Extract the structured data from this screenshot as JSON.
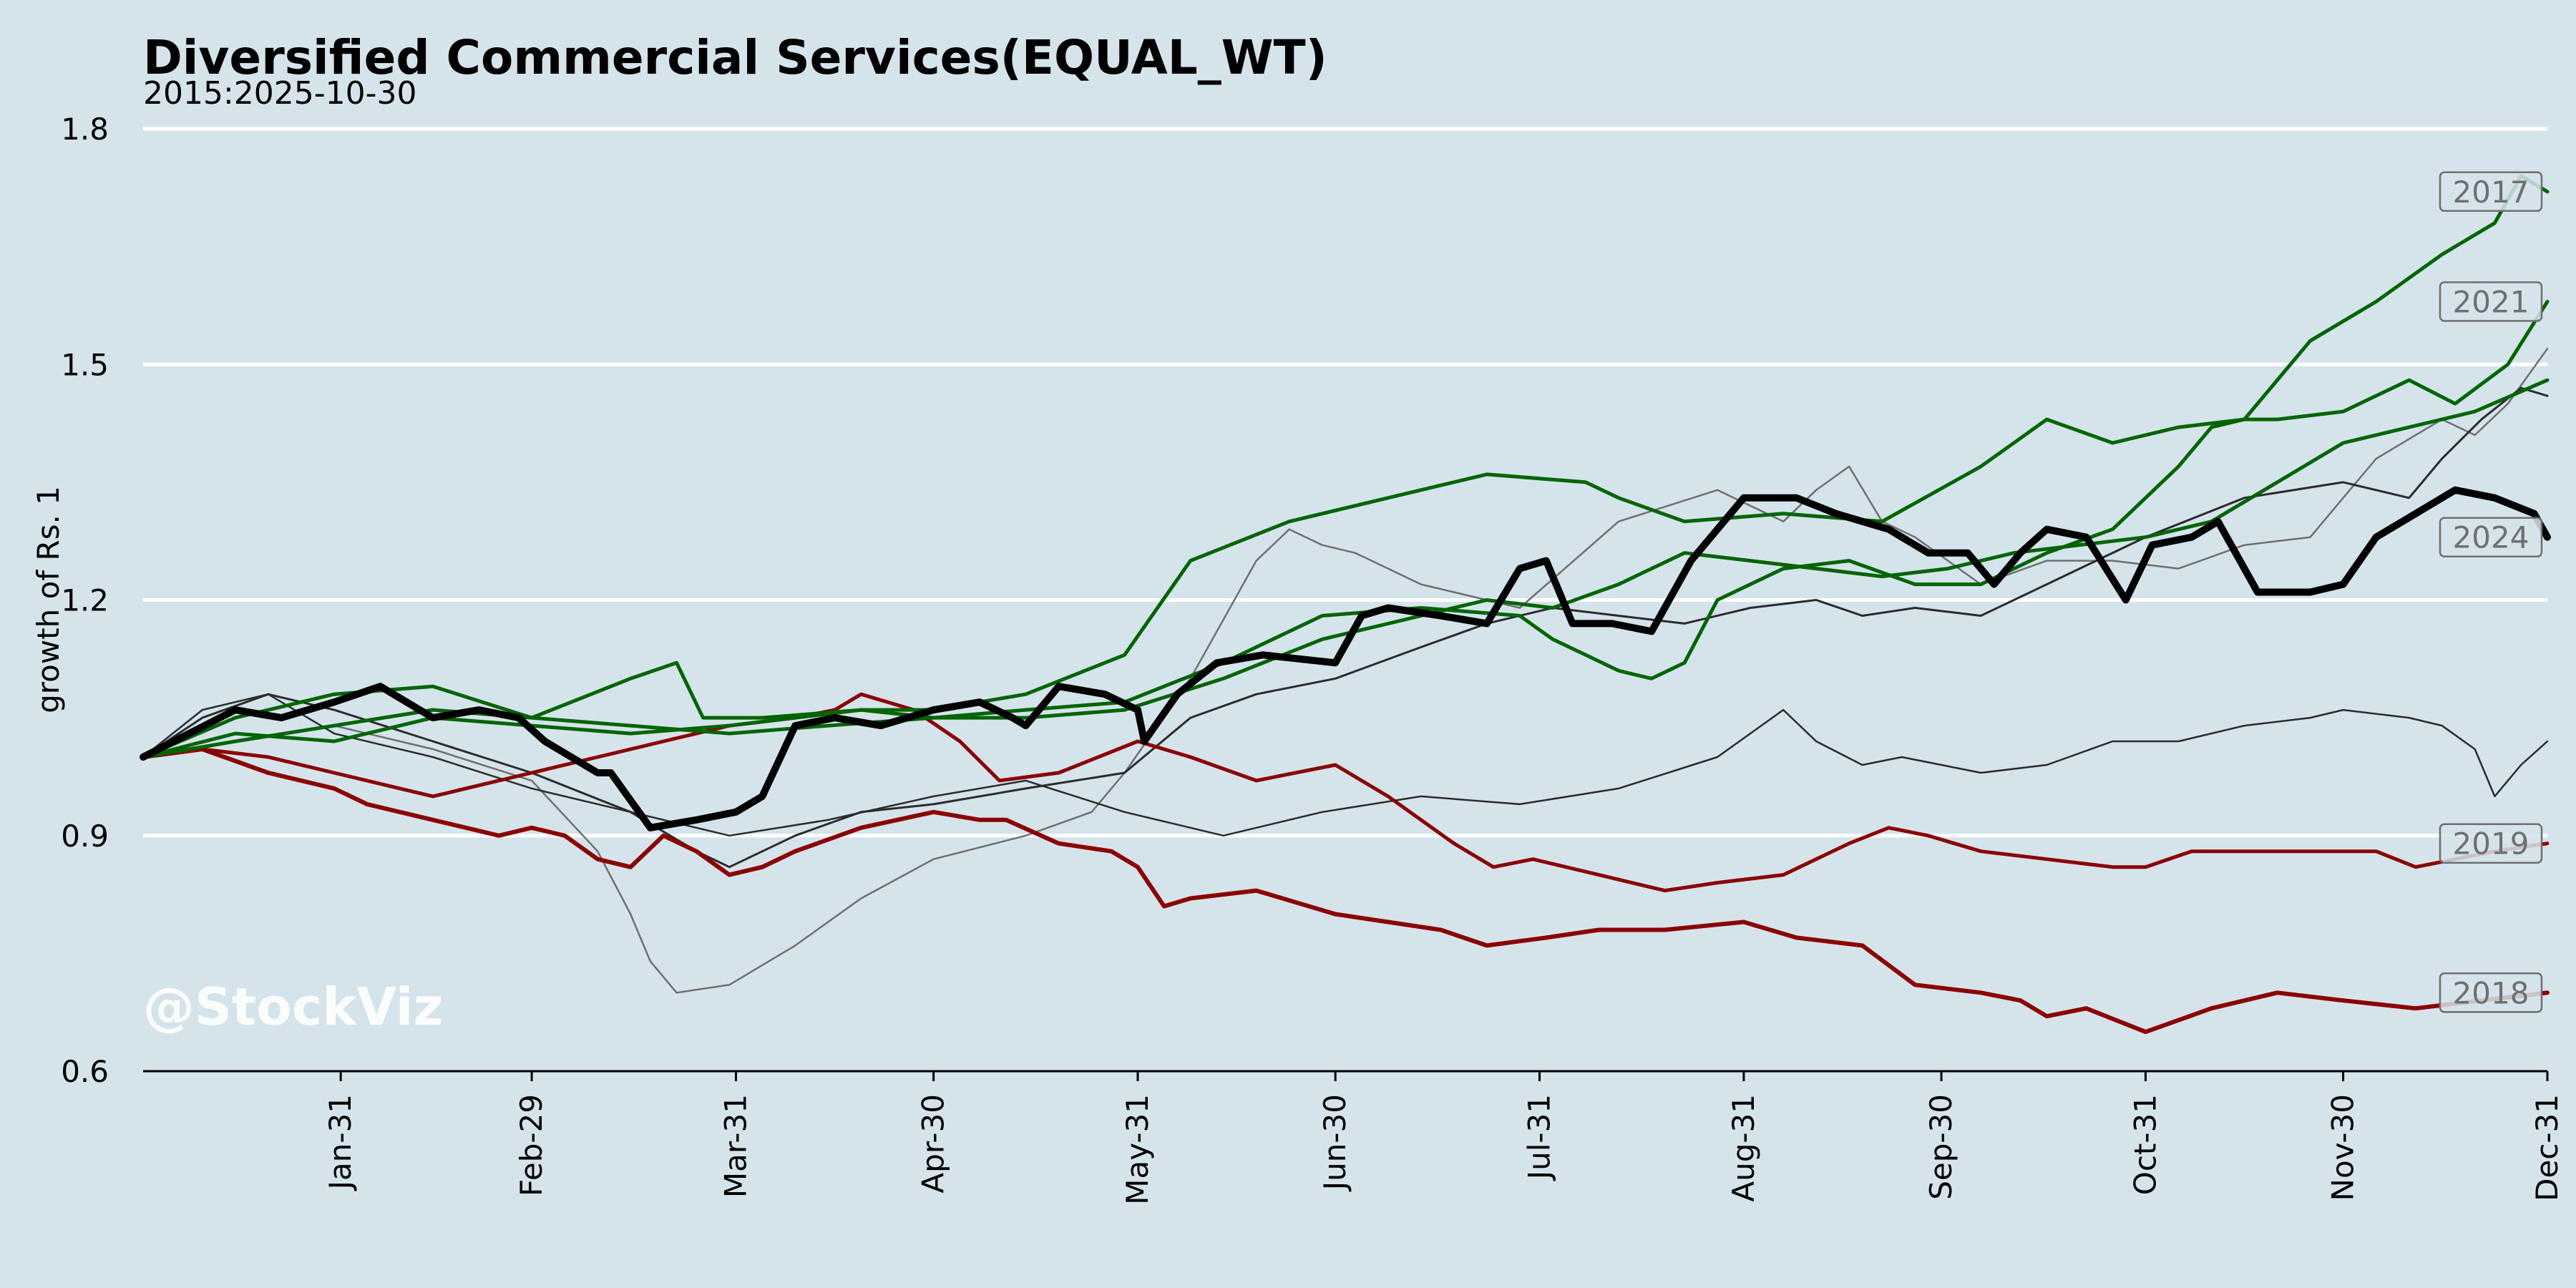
{
  "colors": {
    "background": "#d5e4eb",
    "gridline": "#ffffff",
    "axis": "#000000",
    "up_year": "#006400",
    "down_year": "#8b0000",
    "current_year": "#000000",
    "other_year": "#2b2b2b",
    "faint_year": "#6f6f6f",
    "year_label_text": "#6f6f6f",
    "year_label_border": "#6f6f6f"
  },
  "chart_data": {
    "type": "line",
    "title": "Diversified Commercial Services(EQUAL_WT)",
    "subtitle": "2015:2025-10-30",
    "ylabel": "growth of Rs. 1",
    "xlabel": "",
    "watermark": "@StockViz",
    "ylim": [
      0.6,
      1.8
    ],
    "xlim": [
      1,
      366
    ],
    "yticks": [
      0.6,
      0.9,
      1.2,
      1.5,
      1.8
    ],
    "ytick_labels": [
      "0.6",
      "0.9",
      "1.2",
      "1.5",
      "1.8"
    ],
    "xticks": [
      {
        "day": 31,
        "label": "Jan-31"
      },
      {
        "day": 60,
        "label": "Feb-29"
      },
      {
        "day": 91,
        "label": "Mar-31"
      },
      {
        "day": 121,
        "label": "Apr-30"
      },
      {
        "day": 152,
        "label": "May-31"
      },
      {
        "day": 182,
        "label": "Jun-30"
      },
      {
        "day": 213,
        "label": "Jul-31"
      },
      {
        "day": 244,
        "label": "Aug-31"
      },
      {
        "day": 274,
        "label": "Sep-30"
      },
      {
        "day": 305,
        "label": "Oct-31"
      },
      {
        "day": 335,
        "label": "Nov-30"
      },
      {
        "day": 366,
        "label": "Dec-31"
      }
    ],
    "grid": "horizontal",
    "series": [
      {
        "name": "2017",
        "label_shown": true,
        "style": "up",
        "width": 5,
        "x": [
          1,
          15,
          30,
          45,
          60,
          75,
          82,
          86,
          95,
          110,
          121,
          135,
          150,
          160,
          175,
          190,
          205,
          220,
          225,
          235,
          250,
          265,
          280,
          290,
          300,
          310,
          320,
          330,
          340,
          350,
          358,
          362,
          366
        ],
        "y": [
          1.0,
          1.05,
          1.08,
          1.09,
          1.05,
          1.1,
          1.12,
          1.05,
          1.05,
          1.06,
          1.06,
          1.08,
          1.13,
          1.25,
          1.3,
          1.33,
          1.36,
          1.35,
          1.33,
          1.3,
          1.31,
          1.3,
          1.37,
          1.43,
          1.4,
          1.42,
          1.43,
          1.53,
          1.58,
          1.64,
          1.68,
          1.74,
          1.72
        ]
      },
      {
        "name": "2021",
        "label_shown": true,
        "style": "up",
        "width": 5,
        "x": [
          1,
          15,
          30,
          45,
          60,
          75,
          90,
          105,
          121,
          135,
          150,
          165,
          180,
          195,
          210,
          215,
          220,
          225,
          230,
          235,
          240,
          250,
          260,
          270,
          280,
          290,
          300,
          310,
          315,
          320,
          325,
          335,
          345,
          352,
          360,
          366
        ],
        "y": [
          1.0,
          1.02,
          1.04,
          1.06,
          1.05,
          1.04,
          1.03,
          1.04,
          1.05,
          1.06,
          1.07,
          1.12,
          1.18,
          1.19,
          1.18,
          1.15,
          1.13,
          1.11,
          1.1,
          1.12,
          1.2,
          1.24,
          1.25,
          1.22,
          1.22,
          1.26,
          1.29,
          1.37,
          1.42,
          1.43,
          1.43,
          1.44,
          1.48,
          1.45,
          1.5,
          1.58
        ]
      },
      {
        "name": "",
        "label_shown": false,
        "style": "up",
        "width": 5,
        "x": [
          1,
          15,
          30,
          45,
          60,
          75,
          90,
          100,
          110,
          121,
          135,
          150,
          165,
          180,
          195,
          205,
          215,
          225,
          235,
          245,
          255,
          265,
          275,
          285,
          295,
          305,
          315,
          325,
          335,
          345,
          355,
          366
        ],
        "y": [
          1.0,
          1.03,
          1.02,
          1.05,
          1.04,
          1.03,
          1.04,
          1.05,
          1.06,
          1.05,
          1.05,
          1.06,
          1.1,
          1.15,
          1.18,
          1.2,
          1.19,
          1.22,
          1.26,
          1.25,
          1.24,
          1.23,
          1.24,
          1.26,
          1.27,
          1.28,
          1.3,
          1.35,
          1.4,
          1.42,
          1.44,
          1.48
        ]
      },
      {
        "name": "2024",
        "label_shown": true,
        "style": "current",
        "width": 10,
        "x": [
          1,
          8,
          15,
          22,
          30,
          37,
          45,
          52,
          58,
          62,
          66,
          70,
          72,
          78,
          85,
          91,
          95,
          100,
          106,
          113,
          121,
          128,
          133,
          135,
          140,
          147,
          152,
          153,
          158,
          164,
          171,
          182,
          186,
          190,
          198,
          205,
          210,
          214,
          218,
          224,
          230,
          236,
          244,
          252,
          258,
          266,
          272,
          278,
          282,
          286,
          290,
          296,
          302,
          306,
          312,
          316,
          322,
          330,
          335,
          340,
          346,
          352,
          358,
          364,
          366
        ],
        "y": [
          1.0,
          1.03,
          1.06,
          1.05,
          1.07,
          1.09,
          1.05,
          1.06,
          1.05,
          1.02,
          1.0,
          0.98,
          0.98,
          0.91,
          0.92,
          0.93,
          0.95,
          1.04,
          1.05,
          1.04,
          1.06,
          1.07,
          1.05,
          1.04,
          1.09,
          1.08,
          1.06,
          1.02,
          1.08,
          1.12,
          1.13,
          1.12,
          1.18,
          1.19,
          1.18,
          1.17,
          1.24,
          1.25,
          1.17,
          1.17,
          1.16,
          1.25,
          1.33,
          1.33,
          1.31,
          1.29,
          1.26,
          1.26,
          1.22,
          1.26,
          1.29,
          1.28,
          1.2,
          1.27,
          1.28,
          1.3,
          1.21,
          1.21,
          1.22,
          1.28,
          1.31,
          1.34,
          1.33,
          1.31,
          1.28
        ]
      },
      {
        "name": "",
        "label_shown": false,
        "style": "other",
        "width": 3,
        "x": [
          1,
          10,
          20,
          30,
          45,
          60,
          75,
          85,
          90,
          100,
          110,
          121,
          135,
          150,
          160,
          170,
          182,
          195,
          205,
          215,
          225,
          235,
          245,
          255,
          262,
          270,
          280,
          290,
          305,
          320,
          335,
          345,
          350,
          356,
          362,
          366
        ],
        "y": [
          1.0,
          1.05,
          1.08,
          1.06,
          1.02,
          0.98,
          0.93,
          0.88,
          0.86,
          0.9,
          0.93,
          0.94,
          0.96,
          0.98,
          1.05,
          1.08,
          1.1,
          1.14,
          1.17,
          1.19,
          1.18,
          1.17,
          1.19,
          1.2,
          1.18,
          1.19,
          1.18,
          1.22,
          1.28,
          1.33,
          1.35,
          1.33,
          1.38,
          1.43,
          1.47,
          1.46
        ]
      },
      {
        "name": "",
        "label_shown": false,
        "style": "other",
        "width": 2.5,
        "x": [
          1,
          10,
          20,
          30,
          45,
          60,
          75,
          90,
          105,
          121,
          135,
          150,
          165,
          180,
          195,
          210,
          225,
          240,
          250,
          255,
          262,
          268,
          280,
          290,
          300,
          310,
          320,
          330,
          335,
          345,
          350,
          355,
          358,
          362,
          366
        ],
        "y": [
          1.0,
          1.06,
          1.08,
          1.03,
          1.0,
          0.96,
          0.93,
          0.9,
          0.92,
          0.95,
          0.97,
          0.93,
          0.9,
          0.93,
          0.95,
          0.94,
          0.96,
          1.0,
          1.06,
          1.02,
          0.99,
          1.0,
          0.98,
          0.99,
          1.02,
          1.02,
          1.04,
          1.05,
          1.06,
          1.05,
          1.04,
          1.01,
          0.95,
          0.99,
          1.02
        ]
      },
      {
        "name": "",
        "label_shown": false,
        "style": "faint",
        "width": 2.5,
        "x": [
          1,
          15,
          30,
          45,
          60,
          70,
          75,
          78,
          82,
          90,
          100,
          110,
          121,
          135,
          145,
          150,
          160,
          170,
          175,
          180,
          185,
          195,
          210,
          225,
          240,
          250,
          255,
          260,
          265,
          270,
          280,
          290,
          300,
          310,
          320,
          330,
          340,
          350,
          355,
          360,
          366
        ],
        "y": [
          1.0,
          1.02,
          1.04,
          1.01,
          0.97,
          0.88,
          0.8,
          0.74,
          0.7,
          0.71,
          0.76,
          0.82,
          0.87,
          0.9,
          0.93,
          0.98,
          1.1,
          1.25,
          1.29,
          1.27,
          1.26,
          1.22,
          1.19,
          1.3,
          1.34,
          1.3,
          1.34,
          1.37,
          1.3,
          1.28,
          1.22,
          1.25,
          1.25,
          1.24,
          1.27,
          1.28,
          1.38,
          1.43,
          1.41,
          1.45,
          1.52
        ]
      },
      {
        "name": "2019",
        "label_shown": true,
        "style": "down",
        "width": 5,
        "x": [
          1,
          10,
          20,
          30,
          45,
          60,
          70,
          80,
          90,
          100,
          106,
          110,
          118,
          125,
          131,
          140,
          152,
          160,
          170,
          182,
          190,
          200,
          206,
          212,
          222,
          232,
          240,
          250,
          260,
          266,
          272,
          280,
          290,
          300,
          305,
          312,
          320,
          330,
          340,
          346,
          352,
          358,
          366
        ],
        "y": [
          1.0,
          1.01,
          1.0,
          0.98,
          0.95,
          0.98,
          1.0,
          1.02,
          1.04,
          1.05,
          1.06,
          1.08,
          1.06,
          1.02,
          0.97,
          0.98,
          1.02,
          1.0,
          0.97,
          0.99,
          0.95,
          0.89,
          0.86,
          0.87,
          0.85,
          0.83,
          0.84,
          0.85,
          0.89,
          0.91,
          0.9,
          0.88,
          0.87,
          0.86,
          0.86,
          0.88,
          0.88,
          0.88,
          0.88,
          0.86,
          0.87,
          0.88,
          0.89
        ]
      },
      {
        "name": "2018",
        "label_shown": true,
        "style": "down",
        "width": 6,
        "x": [
          1,
          10,
          20,
          30,
          35,
          45,
          55,
          60,
          65,
          70,
          75,
          80,
          85,
          90,
          95,
          100,
          110,
          121,
          128,
          132,
          140,
          148,
          152,
          156,
          160,
          170,
          182,
          190,
          198,
          205,
          214,
          222,
          232,
          244,
          252,
          262,
          270,
          280,
          286,
          290,
          296,
          305,
          315,
          325,
          335,
          346,
          356,
          366
        ],
        "y": [
          1.0,
          1.01,
          0.98,
          0.96,
          0.94,
          0.92,
          0.9,
          0.91,
          0.9,
          0.87,
          0.86,
          0.9,
          0.88,
          0.85,
          0.86,
          0.88,
          0.91,
          0.93,
          0.92,
          0.92,
          0.89,
          0.88,
          0.86,
          0.81,
          0.82,
          0.83,
          0.8,
          0.79,
          0.78,
          0.76,
          0.77,
          0.78,
          0.78,
          0.79,
          0.77,
          0.76,
          0.71,
          0.7,
          0.69,
          0.67,
          0.68,
          0.65,
          0.68,
          0.7,
          0.69,
          0.68,
          0.69,
          0.7
        ]
      }
    ]
  }
}
